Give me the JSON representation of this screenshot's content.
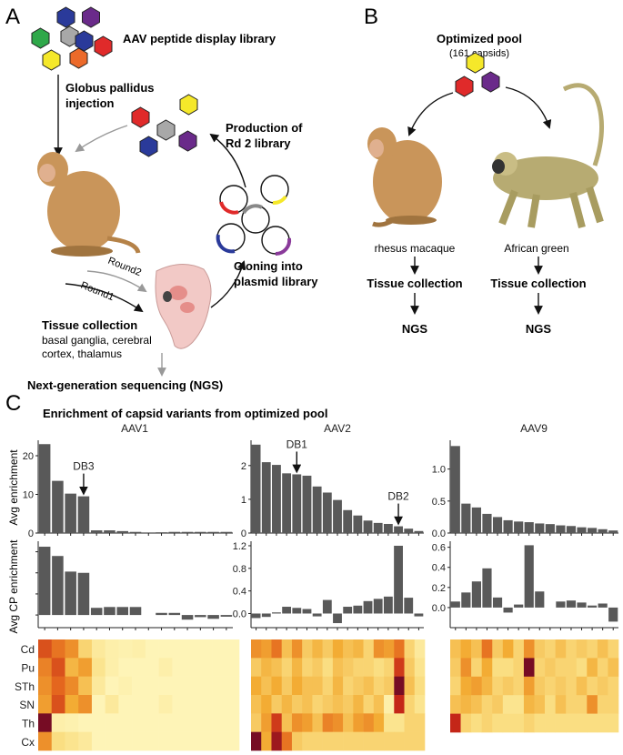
{
  "panel_a": {
    "letter": "A",
    "library_title": "AAV peptide display library",
    "injection": [
      "Globus pallidus",
      "injection"
    ],
    "production": [
      "Production of",
      "Rd 2 library"
    ],
    "round2": "Round2",
    "round1": "Round1",
    "cloning": [
      "Cloning into",
      "plasmid library"
    ],
    "tissue_title": "Tissue collection",
    "tissue_sub": [
      "basal ganglia, cerebral",
      "cortex, thalamus"
    ],
    "ngs": "Next-generation sequencing (NGS)"
  },
  "panel_b": {
    "letter": "B",
    "pool_title": "Optimized pool",
    "pool_sub": "(161 capsids)",
    "species1": "rhesus macaque",
    "species2": "African green",
    "tissue": "Tissue collection",
    "ngs": "NGS"
  },
  "panel_c": {
    "letter": "C",
    "title": "Enrichment of capsid variants from optimized pool",
    "row_labels": [
      "Avg enrichment",
      "Avg CP enrichment"
    ],
    "heat_rows": [
      "Cd",
      "Pu",
      "STh",
      "SN",
      "Th",
      "Cx"
    ]
  },
  "colors": {
    "bar": "#595959",
    "virion_blue": "#2a3a9a",
    "virion_purple": "#6a2a8a",
    "virion_green": "#2fa84a",
    "virion_grey": "#a8a8a8",
    "virion_red": "#e02a2a",
    "virion_orange": "#ec6a2a",
    "virion_yellow": "#f5e82a",
    "monkey": "#c9955a",
    "brain": "#f2c9c6"
  },
  "chart_data": [
    {
      "type": "bar",
      "title": "AAV1",
      "ylabel": "Avg enrichment",
      "yticks": [
        0,
        10,
        20
      ],
      "ylim": [
        0,
        24
      ],
      "values": [
        23,
        13.5,
        10.2,
        9.5,
        0.7,
        0.7,
        0.5,
        0.3,
        0,
        0.2,
        0.3,
        0.3,
        0.3,
        0.3,
        0.3
      ],
      "annotations": [
        {
          "label": "DB3",
          "index": 3
        }
      ]
    },
    {
      "type": "bar",
      "title": "AAV2",
      "ylabel": "Avg enrichment",
      "yticks": [
        0,
        1,
        2
      ],
      "ylim": [
        0,
        2.75
      ],
      "values": [
        2.62,
        2.1,
        2.02,
        1.77,
        1.74,
        1.7,
        1.38,
        1.2,
        0.98,
        0.68,
        0.52,
        0.37,
        0.3,
        0.27,
        0.2,
        0.13,
        0.06
      ],
      "annotations": [
        {
          "label": "DB1",
          "index": 4
        },
        {
          "label": "DB2",
          "index": 14
        }
      ]
    },
    {
      "type": "bar",
      "title": "AAV9",
      "ylabel": "Avg enrichment",
      "yticks": [
        0,
        0.5,
        1.0
      ],
      "yticklabels": [
        "0.0",
        "0.5",
        "1.0"
      ],
      "ylim": [
        0,
        1.45
      ],
      "values": [
        1.36,
        0.46,
        0.4,
        0.3,
        0.25,
        0.2,
        0.18,
        0.17,
        0.15,
        0.14,
        0.12,
        0.11,
        0.09,
        0.08,
        0.06,
        0.04
      ]
    },
    {
      "type": "bar",
      "title": "",
      "ylabel": "Avg CP enrichment",
      "yticks": [
        0,
        5,
        10,
        15
      ],
      "yticklabels": [
        "",
        "",
        "",
        ""
      ],
      "ylim": [
        -3,
        17.5
      ],
      "values": [
        16.2,
        14,
        10.3,
        10,
        1.7,
        1.9,
        1.9,
        1.9,
        0,
        0.5,
        0.5,
        -1.1,
        -0.5,
        -0.9,
        -0.4
      ]
    },
    {
      "type": "bar",
      "title": "",
      "ylabel": "Avg CP enrichment",
      "yticks": [
        0,
        0.4,
        0.8,
        1.2
      ],
      "yticklabels": [
        "0.0",
        "0.4",
        "0.8",
        "1.2"
      ],
      "ylim": [
        -0.25,
        1.28
      ],
      "values": [
        -0.08,
        -0.06,
        0.02,
        0.12,
        0.1,
        0.08,
        -0.05,
        0.24,
        -0.17,
        0.12,
        0.14,
        0.22,
        0.26,
        0.3,
        1.2,
        0.28,
        -0.05
      ]
    },
    {
      "type": "bar",
      "title": "",
      "ylabel": "Avg CP enrichment",
      "yticks": [
        0,
        0.2,
        0.4,
        0.6
      ],
      "yticklabels": [
        "0.0",
        "0.2",
        "0.4",
        "0.6"
      ],
      "ylim": [
        -0.2,
        0.66
      ],
      "values": [
        0.06,
        0.15,
        0.26,
        0.39,
        0.1,
        -0.05,
        0.03,
        0.62,
        0.16,
        0,
        0.06,
        0.07,
        0.05,
        0.02,
        0.04,
        -0.14
      ]
    },
    {
      "type": "heatmap",
      "title": "AAV1",
      "rows": [
        "Cd",
        "Pu",
        "STh",
        "SN",
        "Th",
        "Cx"
      ],
      "values": [
        [
          0.8,
          0.7,
          0.6,
          0.3,
          0.15,
          0.1,
          0.08,
          0.1,
          0.05,
          0.05,
          0.05,
          0.05,
          0.05,
          0.05,
          0.05
        ],
        [
          0.65,
          0.8,
          0.45,
          0.55,
          0.2,
          0.1,
          0.05,
          0.05,
          0.05,
          0.1,
          0.05,
          0.05,
          0.05,
          0.05,
          0.05
        ],
        [
          0.6,
          0.75,
          0.62,
          0.4,
          0.15,
          0.05,
          0.08,
          0.05,
          0.05,
          0.05,
          0.05,
          0.05,
          0.05,
          0.05,
          0.05
        ],
        [
          0.55,
          0.8,
          0.5,
          0.6,
          0.05,
          0.15,
          0.05,
          0.05,
          0.05,
          0.1,
          0.05,
          0.05,
          0.05,
          0.05,
          0.05
        ],
        [
          1.0,
          0.1,
          0.08,
          0.05,
          0.05,
          0.05,
          0.05,
          0.05,
          0.05,
          0.05,
          0.05,
          0.05,
          0.05,
          0.05,
          0.05
        ],
        [
          0.6,
          0.25,
          0.2,
          0.15,
          0.05,
          0.05,
          0.05,
          0.05,
          0.05,
          0.05,
          0.05,
          0.05,
          0.05,
          0.05,
          0.05
        ]
      ]
    },
    {
      "type": "heatmap",
      "title": "AAV2",
      "rows": [
        "Cd",
        "Pu",
        "STh",
        "SN",
        "Th",
        "Cx"
      ],
      "values": [
        [
          0.6,
          0.55,
          0.7,
          0.4,
          0.6,
          0.35,
          0.45,
          0.35,
          0.5,
          0.4,
          0.45,
          0.3,
          0.6,
          0.55,
          0.7,
          0.3,
          0.15
        ],
        [
          0.35,
          0.45,
          0.4,
          0.3,
          0.45,
          0.3,
          0.35,
          0.25,
          0.4,
          0.35,
          0.3,
          0.3,
          0.25,
          0.3,
          0.85,
          0.35,
          0.2
        ],
        [
          0.5,
          0.4,
          0.5,
          0.35,
          0.5,
          0.4,
          0.4,
          0.3,
          0.45,
          0.3,
          0.35,
          0.4,
          0.3,
          0.35,
          1.0,
          0.4,
          0.25
        ],
        [
          0.4,
          0.5,
          0.35,
          0.45,
          0.35,
          0.4,
          0.3,
          0.35,
          0.4,
          0.35,
          0.45,
          0.3,
          0.4,
          0.1,
          0.9,
          0.3,
          0.2
        ],
        [
          0.35,
          0.55,
          0.85,
          0.4,
          0.6,
          0.55,
          0.4,
          0.65,
          0.6,
          0.4,
          0.55,
          0.6,
          0.5,
          0.2,
          0.2,
          0.3,
          0.3
        ],
        [
          1.0,
          0.5,
          0.95,
          0.7,
          0.35,
          0.3,
          0.3,
          0.3,
          0.3,
          0.3,
          0.3,
          0.3,
          0.3,
          0.3,
          0.3,
          0.3,
          0.3
        ]
      ]
    },
    {
      "type": "heatmap",
      "title": "AAV9",
      "rows": [
        "Cd",
        "Pu",
        "STh",
        "SN",
        "Th"
      ],
      "values": [
        [
          0.4,
          0.5,
          0.4,
          0.7,
          0.35,
          0.5,
          0.3,
          0.6,
          0.35,
          0.3,
          0.4,
          0.3,
          0.35,
          0.3,
          0.4,
          0.3
        ],
        [
          0.35,
          0.6,
          0.3,
          0.5,
          0.25,
          0.25,
          0.3,
          1.0,
          0.3,
          0.35,
          0.3,
          0.3,
          0.25,
          0.45,
          0.3,
          0.4
        ],
        [
          0.3,
          0.5,
          0.55,
          0.45,
          0.3,
          0.35,
          0.3,
          0.55,
          0.35,
          0.3,
          0.35,
          0.3,
          0.4,
          0.3,
          0.35,
          0.3
        ],
        [
          0.4,
          0.45,
          0.4,
          0.3,
          0.35,
          0.2,
          0.2,
          0.45,
          0.4,
          0.25,
          0.4,
          0.3,
          0.3,
          0.6,
          0.3,
          0.3
        ],
        [
          0.9,
          0.3,
          0.25,
          0.3,
          0.25,
          0.25,
          0.25,
          0.3,
          0.25,
          0.25,
          0.25,
          0.25,
          0.25,
          0.25,
          0.25,
          0.25
        ]
      ]
    }
  ]
}
